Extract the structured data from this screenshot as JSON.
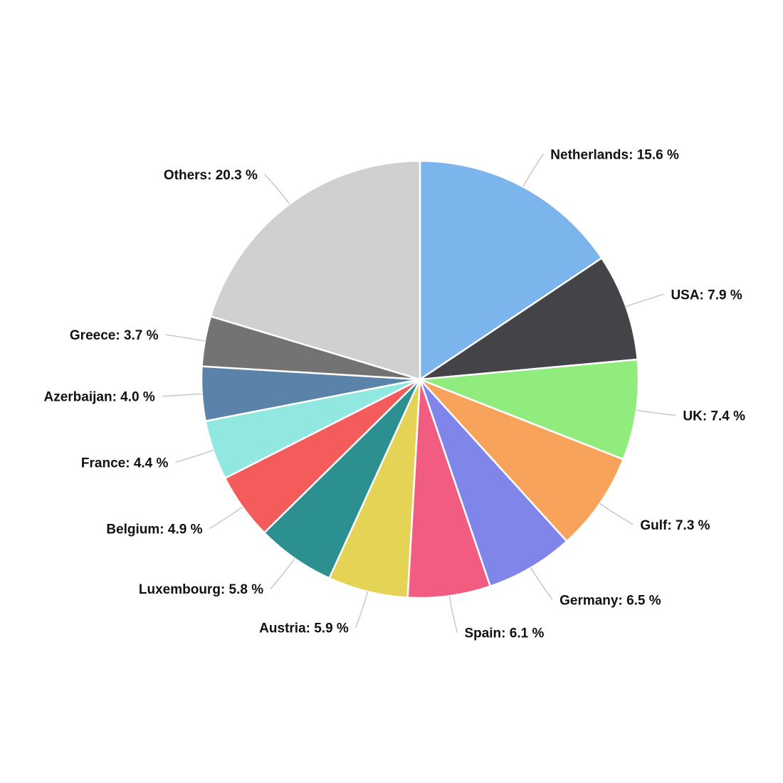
{
  "chart_data": {
    "type": "pie",
    "title": "",
    "start_angle_deg": 0,
    "direction": "clockwise",
    "value_suffix": " %",
    "label_separator": ": ",
    "slices": [
      {
        "name": "Netherlands",
        "value": 15.6,
        "color": "#7cb5ec"
      },
      {
        "name": "USA",
        "value": 7.9,
        "color": "#434348"
      },
      {
        "name": "UK",
        "value": 7.4,
        "color": "#90ed7d"
      },
      {
        "name": "Gulf",
        "value": 7.3,
        "color": "#f7a35c"
      },
      {
        "name": "Germany",
        "value": 6.5,
        "color": "#8085e9"
      },
      {
        "name": "Spain",
        "value": 6.1,
        "color": "#f15c80"
      },
      {
        "name": "Austria",
        "value": 5.9,
        "color": "#e4d354"
      },
      {
        "name": "Luxembourg",
        "value": 5.8,
        "color": "#2b908f"
      },
      {
        "name": "Belgium",
        "value": 4.9,
        "color": "#f45b5b"
      },
      {
        "name": "France",
        "value": 4.4,
        "color": "#91e8e1"
      },
      {
        "name": "Azerbaijan",
        "value": 4.0,
        "color": "#5b82a8"
      },
      {
        "name": "Greece",
        "value": 3.7,
        "color": "#737373"
      },
      {
        "name": "Others",
        "value": 20.3,
        "color": "#d0d0d0"
      }
    ]
  }
}
